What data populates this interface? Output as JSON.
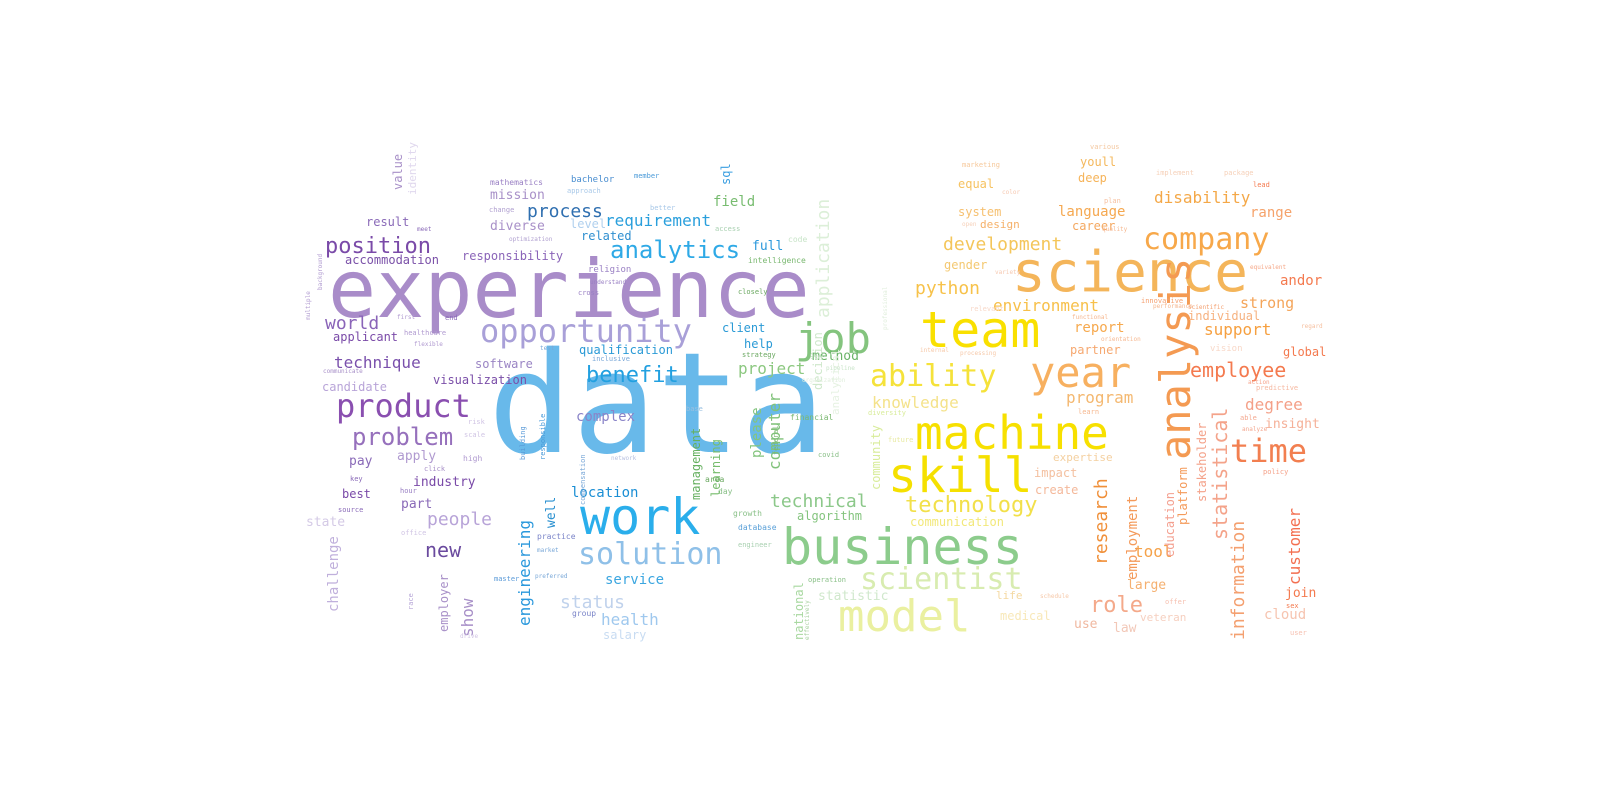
{
  "word_cloud": {
    "words": [
      {
        "text": "data",
        "color": "#68b9ea"
      },
      {
        "text": "experience",
        "color": "#a98cc9"
      },
      {
        "text": "science",
        "color": "#f4b55a"
      },
      {
        "text": "team",
        "color": "#f9e000"
      },
      {
        "text": "business",
        "color": "#8ccc8c"
      },
      {
        "text": "machine",
        "color": "#f7e000"
      },
      {
        "text": "skill",
        "color": "#f5e000"
      },
      {
        "text": "work",
        "color": "#2aaeeb"
      },
      {
        "text": "analysis",
        "color": "#f49a52"
      },
      {
        "text": "model",
        "color": "#eaf0a0"
      },
      {
        "text": "year",
        "color": "#f7b060"
      },
      {
        "text": "opportunity",
        "color": "#a9a0d8"
      },
      {
        "text": "product",
        "color": "#8a4fb0"
      },
      {
        "text": "job",
        "color": "#84c47e"
      },
      {
        "text": "company",
        "color": "#f7a84a"
      },
      {
        "text": "solution",
        "color": "#8fc0e8"
      },
      {
        "text": "time",
        "color": "#f27f50"
      },
      {
        "text": "ability",
        "color": "#f5e23a"
      },
      {
        "text": "scientist",
        "color": "#d8ecb0"
      },
      {
        "text": "analytics",
        "color": "#2ea9e6"
      },
      {
        "text": "problem",
        "color": "#9670bc"
      },
      {
        "text": "position",
        "color": "#7a4aa8"
      },
      {
        "text": "benefit",
        "color": "#22a0e0"
      },
      {
        "text": "technology",
        "color": "#f2e04a"
      },
      {
        "text": "employee",
        "color": "#f47a4f"
      },
      {
        "text": "development",
        "color": "#f4c65a"
      },
      {
        "text": "role",
        "color": "#f4a98a"
      },
      {
        "text": "new",
        "color": "#6a4a9e"
      },
      {
        "text": "world",
        "color": "#8a64b8"
      },
      {
        "text": "technical",
        "color": "#8cc88a"
      },
      {
        "text": "statistical",
        "color": "#f4a38a"
      },
      {
        "text": "information",
        "color": "#f4a070"
      },
      {
        "text": "research",
        "color": "#f0903a"
      },
      {
        "text": "application",
        "color": "#dcefd8"
      },
      {
        "text": "process",
        "color": "#2f6fb0"
      },
      {
        "text": "computer",
        "color": "#80c27a"
      },
      {
        "text": "engineering",
        "color": "#2a98dc"
      },
      {
        "text": "customer",
        "color": "#f36f50"
      },
      {
        "text": "technique",
        "color": "#7a50ac"
      },
      {
        "text": "python",
        "color": "#f7c24a"
      },
      {
        "text": "people",
        "color": "#b8a4d8"
      },
      {
        "text": "support",
        "color": "#f6a040"
      },
      {
        "text": "disability",
        "color": "#f4a848"
      },
      {
        "text": "status",
        "color": "#c0d2ec"
      },
      {
        "text": "degree",
        "color": "#f4a088"
      },
      {
        "text": "environment",
        "color": "#f7c04a"
      },
      {
        "text": "project",
        "color": "#8cc880"
      },
      {
        "text": "language",
        "color": "#f5a850"
      },
      {
        "text": "knowledge",
        "color": "#f4e28a"
      },
      {
        "text": "program",
        "color": "#f4b870"
      },
      {
        "text": "health",
        "color": "#9fc8ee"
      },
      {
        "text": "location",
        "color": "#1a8ed4"
      },
      {
        "text": "requirement",
        "color": "#2a9fdc"
      },
      {
        "text": "tool",
        "color": "#f5a24a"
      },
      {
        "text": "strong",
        "color": "#f4a55a"
      },
      {
        "text": "report",
        "color": "#f6a94e"
      },
      {
        "text": "field",
        "color": "#78bc70"
      },
      {
        "text": "visualization",
        "color": "#7a4ea8"
      },
      {
        "text": "mission",
        "color": "#a890c8"
      },
      {
        "text": "diverse",
        "color": "#a890c8"
      },
      {
        "text": "service",
        "color": "#3ba6e0"
      },
      {
        "text": "statistic",
        "color": "#d0e8cc"
      },
      {
        "text": "qualification",
        "color": "#2a9ad6"
      },
      {
        "text": "accommodation",
        "color": "#7a50a8"
      },
      {
        "text": "responsibility",
        "color": "#8a64b8"
      },
      {
        "text": "candidate",
        "color": "#b8a4d8"
      },
      {
        "text": "industry",
        "color": "#7a4aa8"
      },
      {
        "text": "software",
        "color": "#9a84c4"
      },
      {
        "text": "applicant",
        "color": "#7a4aa8"
      },
      {
        "text": "result",
        "color": "#8a6ab8"
      },
      {
        "text": "apply",
        "color": "#b09ad0"
      },
      {
        "text": "pay",
        "color": "#8a6ab8"
      },
      {
        "text": "best",
        "color": "#7a4aa8"
      },
      {
        "text": "part",
        "color": "#8a6ab8"
      },
      {
        "text": "show",
        "color": "#a890c8"
      },
      {
        "text": "employer",
        "color": "#a890c8"
      },
      {
        "text": "challenge",
        "color": "#c0b0dc"
      },
      {
        "text": "state",
        "color": "#d4cae6"
      },
      {
        "text": "value",
        "color": "#a890c8"
      },
      {
        "text": "identity",
        "color": "#e0d8ee"
      },
      {
        "text": "related",
        "color": "#2f8fd0"
      },
      {
        "text": "level",
        "color": "#b0d0ee"
      },
      {
        "text": "complex",
        "color": "#8a84c8"
      },
      {
        "text": "client",
        "color": "#2a9ad6"
      },
      {
        "text": "help",
        "color": "#2a9ad6"
      },
      {
        "text": "method",
        "color": "#6ab468"
      },
      {
        "text": "well",
        "color": "#2a90d0"
      },
      {
        "text": "full",
        "color": "#2a98dc"
      },
      {
        "text": "management",
        "color": "#66b060"
      },
      {
        "text": "learning",
        "color": "#76bc6c"
      },
      {
        "text": "please",
        "color": "#84c47e"
      },
      {
        "text": "algorithm",
        "color": "#84c47e"
      },
      {
        "text": "salary",
        "color": "#c8dcf2"
      },
      {
        "text": "decision",
        "color": "#cfe8cc"
      },
      {
        "text": "analytical",
        "color": "#e6f2e2"
      },
      {
        "text": "community",
        "color": "#d8ec9a"
      },
      {
        "text": "national",
        "color": "#a8d8a0"
      },
      {
        "text": "communication",
        "color": "#f2e87a"
      },
      {
        "text": "gender",
        "color": "#f4c870"
      },
      {
        "text": "equal",
        "color": "#f6c260"
      },
      {
        "text": "system",
        "color": "#f6c070"
      },
      {
        "text": "design",
        "color": "#f5b068"
      },
      {
        "text": "deep",
        "color": "#f6b45a"
      },
      {
        "text": "youll",
        "color": "#f4b85c"
      },
      {
        "text": "career",
        "color": "#f4a860"
      },
      {
        "text": "range",
        "color": "#f5a26a"
      },
      {
        "text": "employment",
        "color": "#f49a5a"
      },
      {
        "text": "education",
        "color": "#f4a090"
      },
      {
        "text": "platform",
        "color": "#f49a5a"
      },
      {
        "text": "stakeholder",
        "color": "#f4a28a"
      },
      {
        "text": "individual",
        "color": "#f6b280"
      },
      {
        "text": "partner",
        "color": "#f6a870"
      },
      {
        "text": "insight",
        "color": "#f5b098"
      },
      {
        "text": "andor",
        "color": "#f47a4f"
      },
      {
        "text": "global",
        "color": "#f47a4f"
      },
      {
        "text": "join",
        "color": "#f47a4f"
      },
      {
        "text": "cloud",
        "color": "#f6c4b0"
      },
      {
        "text": "law",
        "color": "#f2c8b8"
      },
      {
        "text": "use",
        "color": "#f0b8a0"
      },
      {
        "text": "large",
        "color": "#f5b070"
      },
      {
        "text": "impact",
        "color": "#f4c0a0"
      },
      {
        "text": "create",
        "color": "#f4b89a"
      },
      {
        "text": "expertise",
        "color": "#f4d0a0"
      },
      {
        "text": "life",
        "color": "#f4d8a0"
      },
      {
        "text": "medical",
        "color": "#f8e8b8"
      },
      {
        "text": "veteran",
        "color": "#f6d0c0"
      },
      {
        "text": "bachelor",
        "color": "#4a8ed0"
      },
      {
        "text": "mathematics",
        "color": "#9a80c4"
      },
      {
        "text": "sql",
        "color": "#3a9ee0"
      },
      {
        "text": "code",
        "color": "#c8e4c8"
      },
      {
        "text": "intelligence",
        "color": "#7ab870"
      },
      {
        "text": "marketing",
        "color": "#f6c89a"
      },
      {
        "text": "various",
        "color": "#f4c8a0"
      },
      {
        "text": "vision",
        "color": "#f8d8c8"
      },
      {
        "text": "financial",
        "color": "#7ab870"
      },
      {
        "text": "religion",
        "color": "#9a80c4"
      },
      {
        "text": "member",
        "color": "#4a9ad8"
      },
      {
        "text": "better",
        "color": "#a8c8e8"
      },
      {
        "text": "approach",
        "color": "#a8c8e8"
      },
      {
        "text": "change",
        "color": "#b0a0d0"
      },
      {
        "text": "access",
        "color": "#a8d0b0"
      },
      {
        "text": "understand",
        "color": "#9a80c4"
      },
      {
        "text": "closely",
        "color": "#6aa860"
      },
      {
        "text": "inclusive",
        "color": "#7aa8d8"
      },
      {
        "text": "growth",
        "color": "#8ac088"
      },
      {
        "text": "database",
        "color": "#5aa0d8"
      },
      {
        "text": "engineer",
        "color": "#a8d0b0"
      },
      {
        "text": "day",
        "color": "#8ac088"
      },
      {
        "text": "area",
        "color": "#6aa860"
      },
      {
        "text": "practice",
        "color": "#7a84c8"
      },
      {
        "text": "compensation",
        "color": "#7aa8d8"
      },
      {
        "text": "strategy",
        "color": "#6aa860"
      },
      {
        "text": "operation",
        "color": "#8ac088"
      },
      {
        "text": "source",
        "color": "#8a6ab8"
      },
      {
        "text": "hour",
        "color": "#9a80c4"
      },
      {
        "text": "key",
        "color": "#8a6ab8"
      },
      {
        "text": "click",
        "color": "#a890c8"
      },
      {
        "text": "high",
        "color": "#b09ad0"
      },
      {
        "text": "end",
        "color": "#8a6ab8"
      },
      {
        "text": "meet",
        "color": "#8a6ab8"
      },
      {
        "text": "first",
        "color": "#b09ad0"
      },
      {
        "text": "healthcare",
        "color": "#b09ad0"
      },
      {
        "text": "flexible",
        "color": "#b09ad0"
      },
      {
        "text": "communicate",
        "color": "#a890c8"
      },
      {
        "text": "background",
        "color": "#b09ad0"
      },
      {
        "text": "multiple",
        "color": "#b09ad0"
      },
      {
        "text": "race",
        "color": "#b8a8d8"
      },
      {
        "text": "covid",
        "color": "#8ac088"
      },
      {
        "text": "federal",
        "color": "#7ab870"
      },
      {
        "text": "future",
        "color": "#e8eaa0"
      },
      {
        "text": "diversity",
        "color": "#d8ec9a"
      },
      {
        "text": "professional",
        "color": "#e0eedc"
      },
      {
        "text": "organization",
        "color": "#e0eedc"
      },
      {
        "text": "open",
        "color": "#f6d0b8"
      },
      {
        "text": "plan",
        "color": "#f6c0a0"
      },
      {
        "text": "color",
        "color": "#f6c8b0"
      },
      {
        "text": "relevant",
        "color": "#f8d8c8"
      },
      {
        "text": "performance",
        "color": "#f6b890"
      },
      {
        "text": "scientific",
        "color": "#f4a070"
      },
      {
        "text": "offer",
        "color": "#f6c0b0"
      },
      {
        "text": "sex",
        "color": "#f47a4f"
      },
      {
        "text": "user",
        "color": "#f6c0b0"
      },
      {
        "text": "policy",
        "color": "#f4a088"
      },
      {
        "text": "predictive",
        "color": "#f6b8a0"
      },
      {
        "text": "implement",
        "color": "#f6d0b8"
      },
      {
        "text": "package",
        "color": "#f6d0b8"
      },
      {
        "text": "lead",
        "color": "#f47a4f"
      },
      {
        "text": "action",
        "color": "#f6a088"
      },
      {
        "text": "able",
        "color": "#f4a890"
      },
      {
        "text": "regard",
        "color": "#f6c0a0"
      },
      {
        "text": "equivalent",
        "color": "#f6a888"
      },
      {
        "text": "innovative",
        "color": "#f4a070"
      },
      {
        "text": "quality",
        "color": "#f6b890"
      },
      {
        "text": "variety",
        "color": "#f6c8b0"
      },
      {
        "text": "functional",
        "color": "#f6b890"
      },
      {
        "text": "orientation",
        "color": "#f6b890"
      },
      {
        "text": "internal",
        "color": "#f6c8a8"
      },
      {
        "text": "processing",
        "color": "#f6c8a8"
      },
      {
        "text": "schedule",
        "color": "#f6c8a8"
      },
      {
        "text": "learn",
        "color": "#f6b890"
      },
      {
        "text": "analyze",
        "color": "#f4a890"
      },
      {
        "text": "risk",
        "color": "#d0c4e4"
      },
      {
        "text": "scale",
        "color": "#d0c4e4"
      },
      {
        "text": "office",
        "color": "#d0c4e4"
      },
      {
        "text": "network",
        "color": "#b8c0e0"
      },
      {
        "text": "group",
        "color": "#7a84c8"
      },
      {
        "text": "market",
        "color": "#7aa8d8"
      },
      {
        "text": "effectively",
        "color": "#a8d0a0"
      },
      {
        "text": "building",
        "color": "#5a9ad8"
      },
      {
        "text": "responsible",
        "color": "#4a9ad8"
      },
      {
        "text": "master",
        "color": "#5a9ad8"
      },
      {
        "text": "base",
        "color": "#9ac0e0"
      },
      {
        "text": "goal",
        "color": "#b0d4b0"
      },
      {
        "text": "pipeline",
        "color": "#c8e4c8"
      },
      {
        "text": "drive",
        "color": "#d0c4e4"
      },
      {
        "text": "preferred",
        "color": "#7aa8d8"
      },
      {
        "text": "cross",
        "color": "#9a80c4"
      },
      {
        "text": "test",
        "color": "#7aa8d8"
      },
      {
        "text": "optimization",
        "color": "#b0a0d0"
      }
    ]
  }
}
